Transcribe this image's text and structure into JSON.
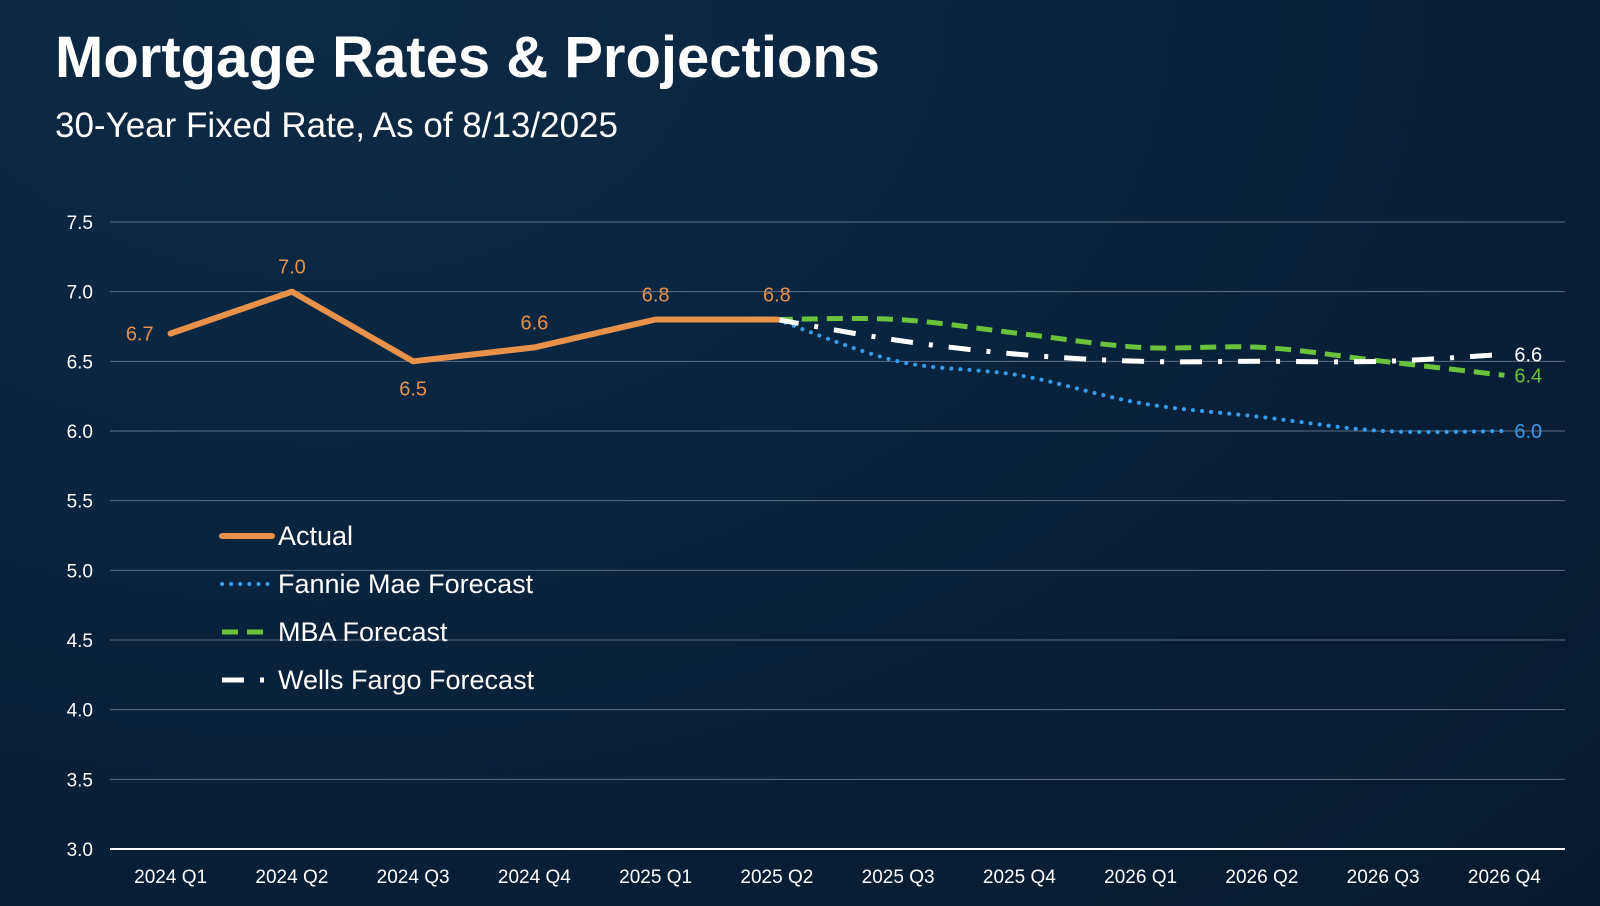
{
  "chart_data": {
    "type": "line",
    "title": "Mortgage Rates & Projections",
    "subtitle": "30-Year Fixed Rate, As of 8/13/2025",
    "xlabel": "",
    "ylabel": "",
    "categories": [
      "2024 Q1",
      "2024 Q2",
      "2024 Q3",
      "2024 Q4",
      "2025 Q1",
      "2025 Q2",
      "2025 Q3",
      "2025 Q4",
      "2026 Q1",
      "2026 Q2",
      "2026 Q3",
      "2026 Q4"
    ],
    "ylim": [
      3.0,
      7.5
    ],
    "yticks": [
      "7.5",
      "7.0",
      "6.5",
      "6.0",
      "5.5",
      "5.0",
      "4.5",
      "4.0",
      "3.5",
      "3.0"
    ],
    "grid": true,
    "legend_position": "left-middle",
    "series": [
      {
        "name": "Actual",
        "style": "solid",
        "color": "#e8914a",
        "values": [
          6.7,
          7.0,
          6.5,
          6.6,
          6.8,
          6.8,
          null,
          null,
          null,
          null,
          null,
          null
        ],
        "labels": [
          {
            "index": 0,
            "text": "6.7",
            "pos": "left"
          },
          {
            "index": 1,
            "text": "7.0",
            "pos": "above"
          },
          {
            "index": 2,
            "text": "6.5",
            "pos": "below"
          },
          {
            "index": 3,
            "text": "6.6",
            "pos": "above"
          },
          {
            "index": 4,
            "text": "6.8",
            "pos": "above"
          },
          {
            "index": 5,
            "text": "6.8",
            "pos": "above"
          }
        ]
      },
      {
        "name": "Fannie Mae Forecast",
        "style": "dotted",
        "color": "#3a9ce8",
        "values": [
          null,
          null,
          null,
          null,
          null,
          6.8,
          6.5,
          6.4,
          6.2,
          6.1,
          6.0,
          6.0
        ],
        "labels": [
          {
            "index": 11,
            "text": "6.0",
            "pos": "right"
          }
        ]
      },
      {
        "name": "MBA Forecast",
        "style": "dashed",
        "color": "#6cc23c",
        "values": [
          null,
          null,
          null,
          null,
          null,
          6.8,
          6.8,
          6.7,
          6.6,
          6.6,
          6.5,
          6.4
        ],
        "labels": [
          {
            "index": 11,
            "text": "6.4",
            "pos": "right"
          }
        ]
      },
      {
        "name": "Wells Fargo Forecast",
        "style": "dashdot",
        "color": "#ffffff",
        "values": [
          null,
          null,
          null,
          null,
          null,
          6.8,
          6.65,
          6.55,
          6.5,
          6.5,
          6.5,
          6.55
        ],
        "labels": [
          {
            "index": 11,
            "text": "6.6",
            "pos": "right"
          }
        ]
      }
    ]
  }
}
